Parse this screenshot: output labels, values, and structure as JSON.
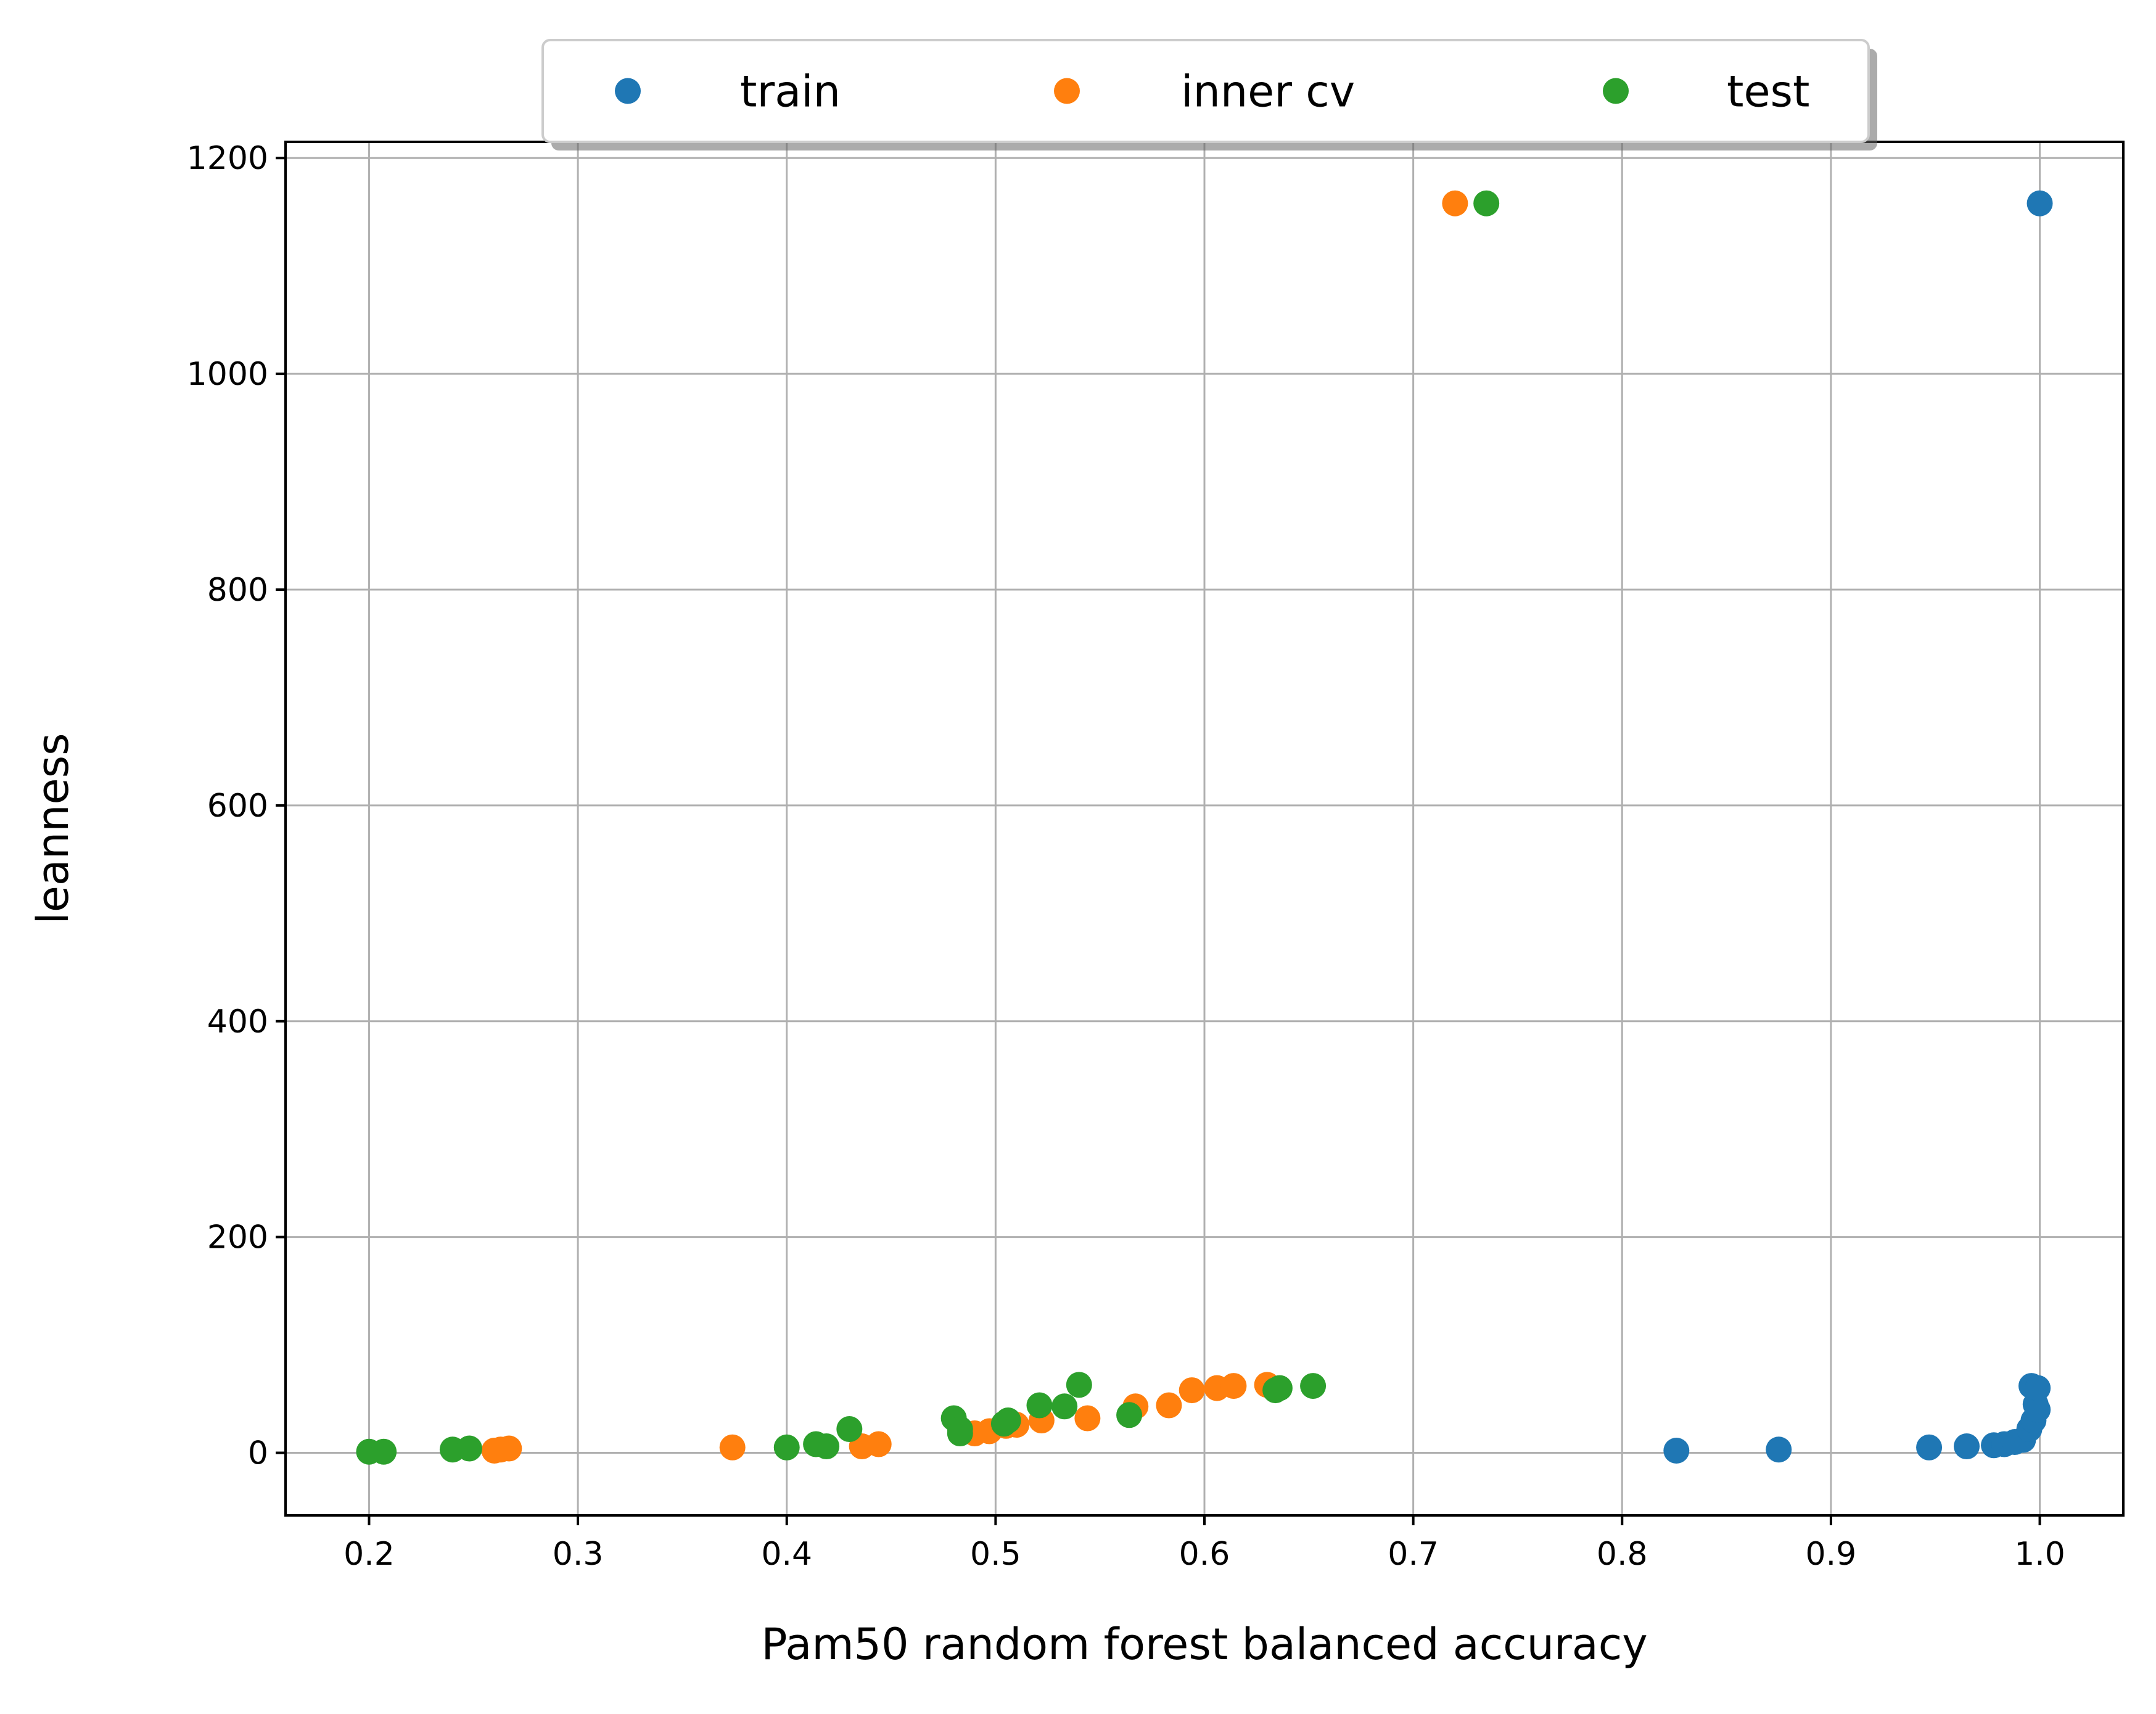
{
  "chart_data": {
    "type": "scatter",
    "xlabel": "Pam50 random forest balanced accuracy",
    "ylabel": "leanness",
    "xlim": [
      0.16,
      1.04
    ],
    "ylim": [
      -58,
      1215
    ],
    "x_ticks": [
      0.2,
      0.3,
      0.4,
      0.5,
      0.6,
      0.7,
      0.8,
      0.9,
      1.0
    ],
    "x_tick_labels": [
      "0.2",
      "0.3",
      "0.4",
      "0.5",
      "0.6",
      "0.7",
      "0.8",
      "0.9",
      "1.0"
    ],
    "y_ticks": [
      0,
      200,
      400,
      600,
      800,
      1000,
      1200
    ],
    "y_tick_labels": [
      "0",
      "200",
      "400",
      "600",
      "800",
      "1000",
      "1200"
    ],
    "grid": true,
    "legend_position": "top-center, above plot",
    "series": [
      {
        "name": "train",
        "color": "#1f77b4",
        "points": [
          [
            0.826,
            2
          ],
          [
            0.875,
            3
          ],
          [
            0.947,
            5
          ],
          [
            0.965,
            6
          ],
          [
            0.978,
            7
          ],
          [
            0.983,
            8
          ],
          [
            0.988,
            10
          ],
          [
            0.992,
            12
          ],
          [
            0.995,
            22
          ],
          [
            0.997,
            30
          ],
          [
            0.998,
            45
          ],
          [
            0.999,
            40
          ],
          [
            0.996,
            62
          ],
          [
            0.999,
            60
          ],
          [
            1.0,
            1158
          ]
        ]
      },
      {
        "name": "inner cv",
        "color": "#ff7f0e",
        "points": [
          [
            0.26,
            2
          ],
          [
            0.263,
            3
          ],
          [
            0.267,
            4
          ],
          [
            0.374,
            5
          ],
          [
            0.436,
            6
          ],
          [
            0.444,
            8
          ],
          [
            0.49,
            18
          ],
          [
            0.497,
            20
          ],
          [
            0.505,
            25
          ],
          [
            0.51,
            26
          ],
          [
            0.522,
            30
          ],
          [
            0.544,
            32
          ],
          [
            0.567,
            43
          ],
          [
            0.583,
            44
          ],
          [
            0.594,
            58
          ],
          [
            0.606,
            60
          ],
          [
            0.614,
            62
          ],
          [
            0.63,
            63
          ],
          [
            0.72,
            1158
          ]
        ]
      },
      {
        "name": "test",
        "color": "#2ca02c",
        "points": [
          [
            0.2,
            1
          ],
          [
            0.207,
            1
          ],
          [
            0.24,
            3
          ],
          [
            0.248,
            4
          ],
          [
            0.4,
            5
          ],
          [
            0.414,
            8
          ],
          [
            0.419,
            6
          ],
          [
            0.43,
            22
          ],
          [
            0.48,
            32
          ],
          [
            0.483,
            22
          ],
          [
            0.483,
            18
          ],
          [
            0.504,
            27
          ],
          [
            0.506,
            30
          ],
          [
            0.521,
            44
          ],
          [
            0.533,
            43
          ],
          [
            0.54,
            63
          ],
          [
            0.564,
            35
          ],
          [
            0.634,
            58
          ],
          [
            0.636,
            60
          ],
          [
            0.652,
            62
          ],
          [
            0.735,
            1158
          ]
        ]
      }
    ]
  }
}
